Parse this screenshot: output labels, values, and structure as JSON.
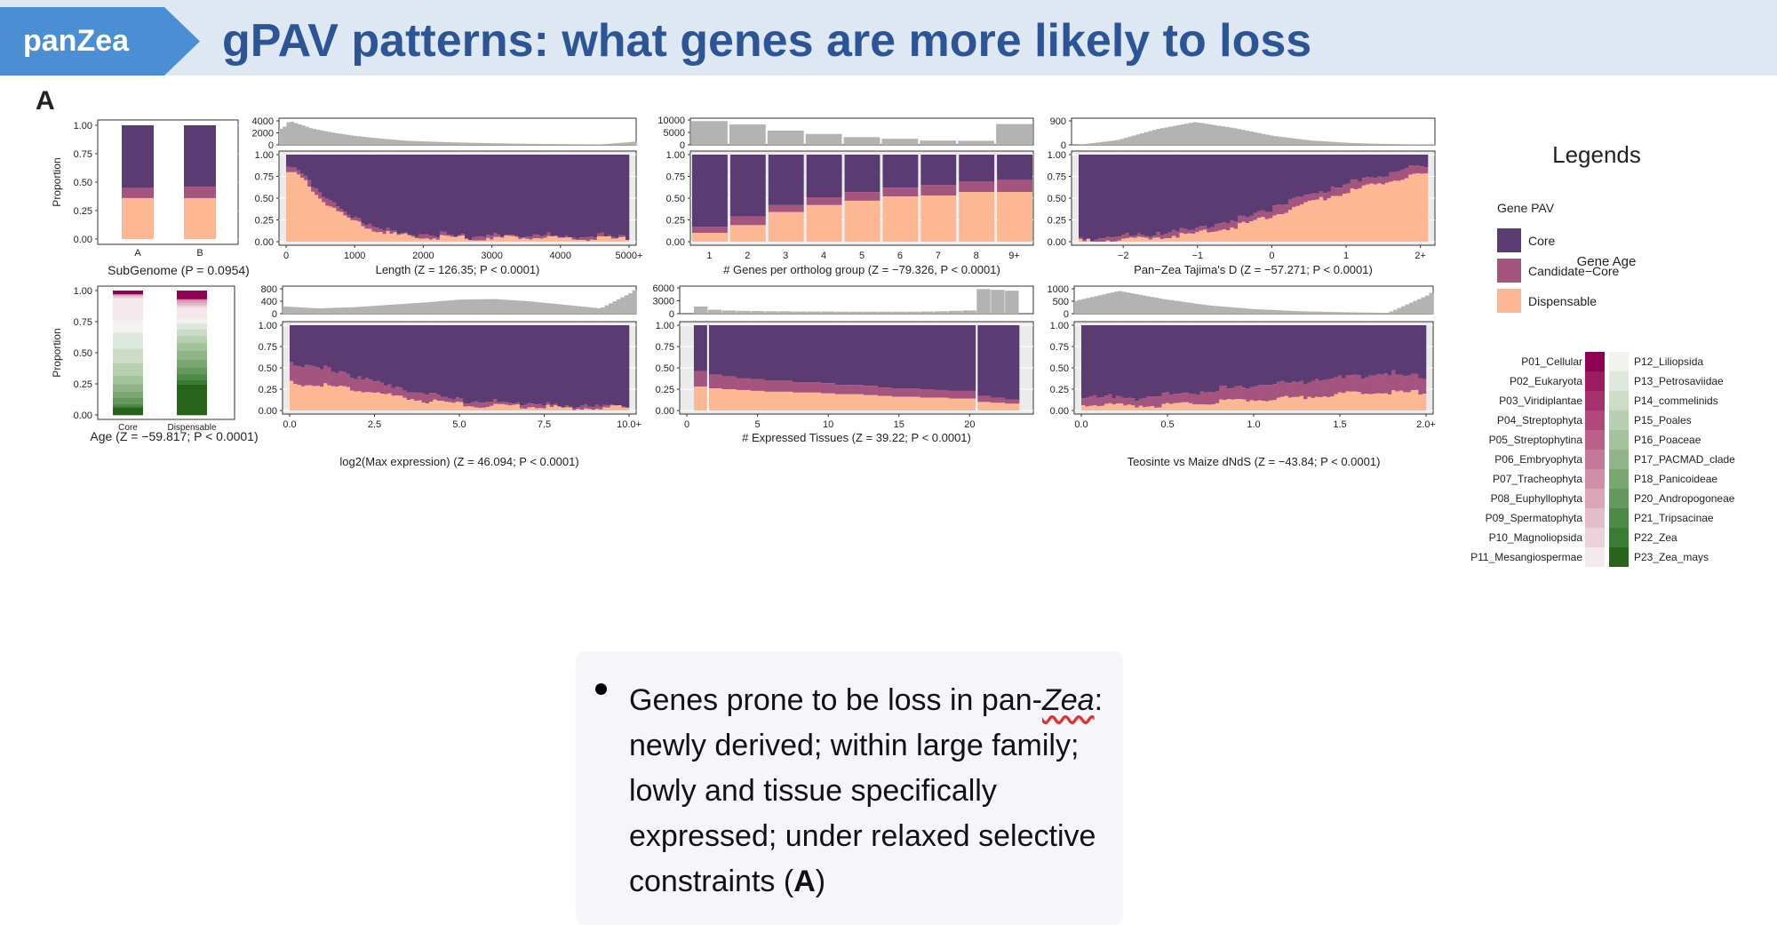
{
  "header": {
    "tag": "panZea",
    "title": "gPAV patterns: what genes are more likely to loss"
  },
  "panel_label": "A",
  "colors": {
    "core": "#5a3b72",
    "candidate": "#a4557f",
    "dispensable": "#fdb893",
    "hist": "#b3b3b3",
    "header_bg": "#dde8f3",
    "tag_bg": "#4a8fd3",
    "title": "#2d5595"
  },
  "legend": {
    "title": "Legends",
    "pav_title": "Gene PAV",
    "pav_items": [
      "Core",
      "Candidate−Core",
      "Dispensable"
    ],
    "age_title": "Gene Age",
    "age_left": [
      "P01_Cellular",
      "P02_Eukaryota",
      "P03_Viridiplantae",
      "P04_Streptophyta",
      "P05_Streptophytina",
      "P06_Embryophyta",
      "P07_Tracheophyta",
      "P08_Euphyllophyta",
      "P09_Spermatophyta",
      "P10_Magnoliopsida",
      "P11_Mesangiospermae"
    ],
    "age_right": [
      "P12_Liliopsida",
      "P13_Petrosaviidae",
      "P14_commelinids",
      "P15_Poales",
      "P16_Poaceae",
      "P17_PACMAD_clade",
      "P18_Panicoideae",
      "P20_Andropogoneae",
      "P21_Tripsacinae",
      "P22_Zea",
      "P23_Zea_mays"
    ],
    "age_left_colors": [
      "#8e0152",
      "#9a1b5f",
      "#a5326d",
      "#b0497b",
      "#bb6089",
      "#c67898",
      "#d08fa8",
      "#daa6b8",
      "#e3bdc9",
      "#ecd3da",
      "#f4e8ec"
    ],
    "age_right_colors": [
      "#f2f2ee",
      "#dfe8dc",
      "#ccdcc7",
      "#b8cfb1",
      "#a4c29c",
      "#8fb487",
      "#7aa672",
      "#65985e",
      "#4f8a49",
      "#3a7c35",
      "#276419"
    ]
  },
  "bullet": {
    "before_italic": "Genes prone to be loss in pan-",
    "italic": "Zea",
    "after_italic": ": newly derived; within large family; lowly and tissue specifically expressed; under relaxed selective constraints (",
    "bold": "A",
    "end": ")"
  },
  "chart_data": [
    {
      "id": "subgenome",
      "type": "bar",
      "stacked": true,
      "title": "SubGenome (P = 0.0954)",
      "xlabel": "SubGenome (P = 0.0954)",
      "ylabel": "Proportion",
      "categories": [
        "A",
        "B"
      ],
      "ylim": [
        0,
        1
      ],
      "yticks": [
        "0.00",
        "0.25",
        "0.50",
        "0.75",
        "1.00"
      ],
      "series": [
        {
          "name": "Dispensable",
          "values": [
            0.36,
            0.36
          ]
        },
        {
          "name": "Candidate−Core",
          "values": [
            0.09,
            0.1
          ]
        },
        {
          "name": "Core",
          "values": [
            0.55,
            0.54
          ]
        }
      ]
    },
    {
      "id": "length",
      "type": "bar",
      "stacked": true,
      "xlabel": "Length (Z = 126.35; P < 0.0001)",
      "xlim": [
        0,
        5000
      ],
      "xticks": [
        "0",
        "1000",
        "2000",
        "3000",
        "4000",
        "5000+"
      ],
      "yticks": [
        "0.00",
        "0.25",
        "0.50",
        "0.75",
        "1.00"
      ],
      "hist_yticks": [
        "0",
        "2000",
        "4000"
      ],
      "bin_centers": [
        50,
        150,
        250,
        350,
        450,
        600,
        800,
        1000,
        1250,
        1500,
        1750,
        2000,
        2500,
        3000,
        3500,
        4000,
        4500,
        5000
      ],
      "dispensable": [
        0.8,
        0.77,
        0.72,
        0.64,
        0.55,
        0.44,
        0.33,
        0.23,
        0.15,
        0.1,
        0.07,
        0.06,
        0.05,
        0.05,
        0.05,
        0.04,
        0.04,
        0.04
      ],
      "candidate": [
        0.08,
        0.08,
        0.08,
        0.08,
        0.07,
        0.06,
        0.05,
        0.05,
        0.04,
        0.03,
        0.03,
        0.03,
        0.03,
        0.03,
        0.03,
        0.03,
        0.03,
        0.03
      ],
      "hist": [
        3000,
        4500,
        4000,
        3600,
        3100,
        2700,
        2200,
        1800,
        1400,
        1100,
        800,
        650,
        450,
        300,
        200,
        130,
        80,
        600
      ],
      "hist_max": 4500
    },
    {
      "id": "ortholog",
      "type": "bar",
      "stacked": true,
      "xlabel": "# Genes per ortholog group (Z = −79.326, P < 0.0001)",
      "categories": [
        "1",
        "2",
        "3",
        "4",
        "5",
        "6",
        "7",
        "8",
        "9+"
      ],
      "yticks": [
        "0.00",
        "0.25",
        "0.50",
        "0.75",
        "1.00"
      ],
      "hist_yticks": [
        "0",
        "5000",
        "10000"
      ],
      "dispensable": [
        0.1,
        0.19,
        0.34,
        0.42,
        0.47,
        0.52,
        0.53,
        0.57,
        0.57
      ],
      "candidate": [
        0.07,
        0.1,
        0.08,
        0.09,
        0.1,
        0.1,
        0.12,
        0.12,
        0.14
      ],
      "hist": [
        10500,
        9000,
        6300,
        4800,
        3400,
        2700,
        1900,
        1800,
        9200
      ],
      "hist_max": 11000
    },
    {
      "id": "tajima",
      "type": "bar",
      "stacked": true,
      "xlabel": "Pan−Zea Tajima's D (Z = −57.271; P < 0.0001)",
      "xlim": [
        -2.6,
        2.1
      ],
      "xticks": [
        "−2",
        "−1",
        "0",
        "1",
        "2+"
      ],
      "yticks": [
        "0.00",
        "0.25",
        "0.50",
        "0.75",
        "1.00"
      ],
      "hist_yticks": [
        "0",
        "900"
      ],
      "x": [
        -2.5,
        -2.0,
        -1.5,
        -1.0,
        -0.5,
        0.0,
        0.5,
        1.0,
        1.5,
        2.0
      ],
      "dispensable": [
        0.01,
        0.03,
        0.06,
        0.1,
        0.18,
        0.3,
        0.45,
        0.58,
        0.68,
        0.78
      ],
      "candidate": [
        0.03,
        0.04,
        0.05,
        0.06,
        0.08,
        0.1,
        0.1,
        0.1,
        0.1,
        0.1
      ],
      "hist": [
        5,
        200,
        650,
        950,
        700,
        380,
        180,
        80,
        35,
        15
      ],
      "hist_max": 1000
    },
    {
      "id": "age",
      "type": "bar",
      "stacked": true,
      "xlabel": "Age (Z = −59.817; P < 0.0001)",
      "ylabel": "Proportion",
      "categories": [
        "Core",
        "Dispensable"
      ],
      "ylim": [
        0,
        1
      ],
      "yticks": [
        "0.00",
        "0.25",
        "0.50",
        "0.75",
        "1.00"
      ],
      "core_stack": [
        0.06,
        0.01,
        0.02,
        0.05,
        0.05,
        0.06,
        0.07,
        0.1,
        0.12,
        0.13,
        0.1,
        0.18,
        0.01,
        0.01,
        0.01,
        0.01,
        0.01,
        0.01
      ],
      "disp_stack": [
        0.27,
        0.04,
        0.05,
        0.06,
        0.07,
        0.08,
        0.07,
        0.06,
        0.06,
        0.05,
        0.04,
        0.1,
        0.02,
        0.02,
        0.02,
        0.02,
        0.02,
        0.05
      ]
    },
    {
      "id": "expression",
      "type": "bar",
      "stacked": true,
      "xlabel": "log2(Max expression) (Z = 46.094; P < 0.0001)",
      "xlim": [
        0,
        10
      ],
      "xticks": [
        "0.0",
        "2.5",
        "5.0",
        "7.5",
        "10.0+"
      ],
      "yticks": [
        "0.00",
        "0.25",
        "0.50",
        "0.75",
        "1.00"
      ],
      "hist_yticks": [
        "0",
        "400",
        "800"
      ],
      "x": [
        0,
        1,
        2,
        3,
        4,
        5,
        6,
        7,
        8,
        9,
        10
      ],
      "dispensable": [
        0.33,
        0.3,
        0.25,
        0.18,
        0.12,
        0.08,
        0.06,
        0.05,
        0.04,
        0.04,
        0.04
      ],
      "candidate": [
        0.25,
        0.2,
        0.16,
        0.12,
        0.09,
        0.06,
        0.05,
        0.04,
        0.03,
        0.03,
        0.02
      ],
      "hist": [
        250,
        180,
        220,
        300,
        380,
        480,
        500,
        420,
        300,
        180,
        800
      ],
      "hist_max": 850
    },
    {
      "id": "tissues",
      "type": "bar",
      "stacked": true,
      "xlabel": "# Expressed Tissues (Z = 39.22; P < 0.0001)",
      "xlim": [
        0,
        24
      ],
      "xticks": [
        "0",
        "5",
        "10",
        "15",
        "20"
      ],
      "yticks": [
        "0.00",
        "0.25",
        "0.50",
        "0.75",
        "1.00"
      ],
      "hist_yticks": [
        "0",
        "3000",
        "6000"
      ],
      "categories": [
        1,
        2,
        3,
        4,
        5,
        6,
        7,
        8,
        9,
        10,
        11,
        12,
        13,
        14,
        15,
        16,
        17,
        18,
        19,
        20,
        21,
        22,
        23
      ],
      "dispensable": [
        0.28,
        0.26,
        0.25,
        0.24,
        0.23,
        0.22,
        0.22,
        0.21,
        0.21,
        0.2,
        0.19,
        0.19,
        0.18,
        0.17,
        0.16,
        0.16,
        0.15,
        0.15,
        0.14,
        0.14,
        0.1,
        0.09,
        0.08
      ],
      "candidate": [
        0.18,
        0.16,
        0.15,
        0.14,
        0.14,
        0.13,
        0.13,
        0.12,
        0.12,
        0.12,
        0.11,
        0.11,
        0.11,
        0.1,
        0.1,
        0.1,
        0.1,
        0.09,
        0.09,
        0.09,
        0.07,
        0.06,
        0.05
      ],
      "hist": [
        1800,
        1000,
        800,
        700,
        650,
        600,
        600,
        550,
        550,
        550,
        500,
        500,
        500,
        500,
        500,
        500,
        550,
        600,
        700,
        800,
        6200,
        6000,
        5800
      ],
      "hist_max": 6500
    },
    {
      "id": "dnds",
      "type": "bar",
      "stacked": true,
      "xlabel": "Teosinte vs Maize dNdS (Z = −43.84; P < 0.0001)",
      "xlim": [
        0,
        2
      ],
      "xticks": [
        "0.0",
        "0.5",
        "1.0",
        "1.5",
        "2.0+"
      ],
      "yticks": [
        "0.00",
        "0.25",
        "0.50",
        "0.75",
        "1.00"
      ],
      "hist_yticks": [
        "0",
        "500",
        "1000"
      ],
      "x": [
        0,
        0.25,
        0.5,
        0.75,
        1.0,
        1.25,
        1.5,
        1.75,
        2.0
      ],
      "dispensable": [
        0.08,
        0.06,
        0.07,
        0.1,
        0.13,
        0.16,
        0.2,
        0.22,
        0.22
      ],
      "candidate": [
        0.1,
        0.1,
        0.12,
        0.14,
        0.17,
        0.19,
        0.2,
        0.22,
        0.2
      ],
      "hist": [
        600,
        1100,
        700,
        400,
        220,
        120,
        70,
        40,
        1000
      ],
      "hist_max": 1200
    }
  ]
}
